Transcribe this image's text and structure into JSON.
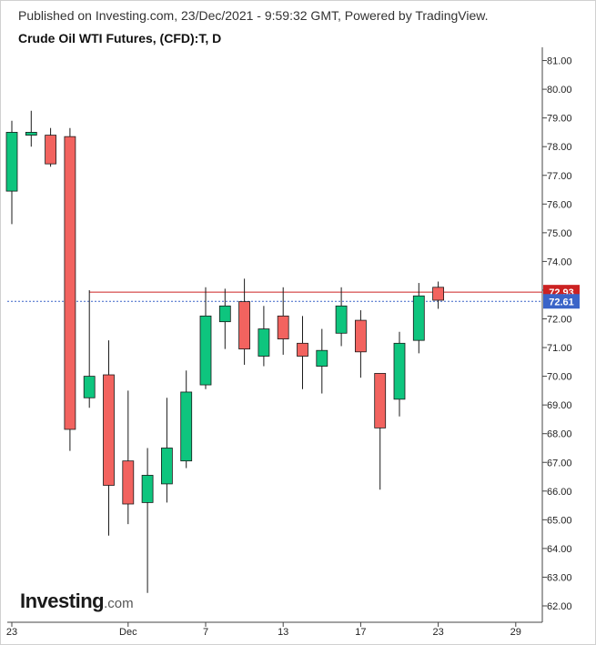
{
  "header": {
    "published": "Published on Investing.com, 23/Dec/2021 - 9:59:32 GMT, Powered by TradingView.",
    "title": "Crude Oil WTI Futures, (CFD):T, D"
  },
  "logo": {
    "name": "Investing",
    "suffix": ".com"
  },
  "chart_data": {
    "type": "candlestick",
    "y_range": [
      61.5,
      81.3
    ],
    "y_ticks": [
      "62.00",
      "63.00",
      "64.00",
      "65.00",
      "66.00",
      "67.00",
      "68.00",
      "69.00",
      "70.00",
      "71.00",
      "72.00",
      "73.00",
      "74.00",
      "75.00",
      "76.00",
      "77.00",
      "78.00",
      "79.00",
      "80.00",
      "81.00"
    ],
    "x_ticks": [
      {
        "label": "23",
        "index": 0
      },
      {
        "label": "Dec",
        "index": 6
      },
      {
        "label": "7",
        "index": 10
      },
      {
        "label": "13",
        "index": 14
      },
      {
        "label": "17",
        "index": 18
      },
      {
        "label": "23",
        "index": 22
      },
      {
        "label": "29",
        "index": 26
      }
    ],
    "candles": [
      {
        "index": 0,
        "open": 76.45,
        "high": 78.9,
        "low": 75.3,
        "close": 78.5
      },
      {
        "index": 1,
        "open": 78.4,
        "high": 79.25,
        "low": 78.0,
        "close": 78.5
      },
      {
        "index": 2,
        "open": 78.4,
        "high": 78.65,
        "low": 77.3,
        "close": 77.4
      },
      {
        "index": 3,
        "open": 78.35,
        "high": 78.65,
        "low": 67.4,
        "close": 68.15
      },
      {
        "index": 4,
        "open": 69.25,
        "high": 73.0,
        "low": 68.9,
        "close": 70.0
      },
      {
        "index": 5,
        "open": 70.05,
        "high": 71.25,
        "low": 64.45,
        "close": 66.2
      },
      {
        "index": 6,
        "open": 67.05,
        "high": 69.5,
        "low": 64.85,
        "close": 65.55
      },
      {
        "index": 7,
        "open": 65.6,
        "high": 67.5,
        "low": 62.45,
        "close": 66.55
      },
      {
        "index": 8,
        "open": 66.25,
        "high": 69.25,
        "low": 65.6,
        "close": 67.5
      },
      {
        "index": 9,
        "open": 67.05,
        "high": 70.2,
        "low": 66.8,
        "close": 69.45
      },
      {
        "index": 10,
        "open": 69.7,
        "high": 73.1,
        "low": 69.55,
        "close": 72.1
      },
      {
        "index": 11,
        "open": 71.9,
        "high": 73.05,
        "low": 70.95,
        "close": 72.45
      },
      {
        "index": 12,
        "open": 72.6,
        "high": 73.4,
        "low": 70.4,
        "close": 70.95
      },
      {
        "index": 13,
        "open": 70.7,
        "high": 72.45,
        "low": 70.35,
        "close": 71.65
      },
      {
        "index": 14,
        "open": 72.1,
        "high": 73.1,
        "low": 70.75,
        "close": 71.3
      },
      {
        "index": 15,
        "open": 71.15,
        "high": 72.1,
        "low": 69.55,
        "close": 70.7
      },
      {
        "index": 16,
        "open": 70.35,
        "high": 71.65,
        "low": 69.4,
        "close": 70.9
      },
      {
        "index": 17,
        "open": 71.5,
        "high": 73.1,
        "low": 71.05,
        "close": 72.45
      },
      {
        "index": 18,
        "open": 71.95,
        "high": 72.3,
        "low": 69.95,
        "close": 70.85
      },
      {
        "index": 19,
        "open": 70.1,
        "high": 70.1,
        "low": 66.05,
        "close": 68.2
      },
      {
        "index": 20,
        "open": 69.2,
        "high": 71.55,
        "low": 68.6,
        "close": 71.15
      },
      {
        "index": 21,
        "open": 71.25,
        "high": 73.25,
        "low": 70.8,
        "close": 72.8
      },
      {
        "index": 22,
        "open": 73.1,
        "high": 73.3,
        "low": 72.35,
        "close": 72.65
      }
    ],
    "levels": [
      {
        "label": "72.93",
        "value": 72.93,
        "style": "solid",
        "color": "#cc2222",
        "start_index": 4
      },
      {
        "label": "72.61",
        "value": 72.61,
        "style": "dotted",
        "color": "#3a64c8",
        "start_index": 0
      }
    ],
    "colors": {
      "up": "#0ec57e",
      "down": "#f2635f",
      "wick": "#1a1a1a",
      "axis": "#444444",
      "text": "#222222"
    }
  }
}
